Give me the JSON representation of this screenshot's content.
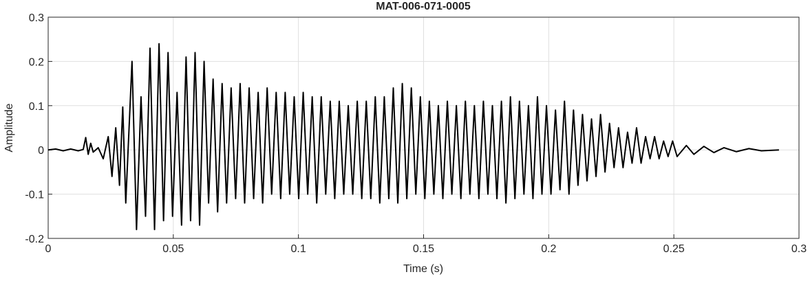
{
  "chart_data": {
    "type": "line",
    "title": "MAT-006-071-0005",
    "x_label": "Time (s)",
    "y_label": "Amplitude",
    "xlim": [
      0,
      0.3
    ],
    "ylim": [
      -0.2,
      0.3
    ],
    "xticks": [
      0,
      0.05,
      0.1,
      0.15,
      0.2,
      0.25,
      0.3
    ],
    "yticks": [
      -0.2,
      -0.1,
      0,
      0.1,
      0.2,
      0.3
    ],
    "grid": true,
    "series": [
      {
        "color": "#000000",
        "x": [
          0,
          0.003,
          0.006,
          0.009,
          0.012,
          0.014,
          0.015,
          0.016,
          0.017,
          0.018,
          0.02,
          0.022,
          0.024,
          0.0255,
          0.027,
          0.0285,
          0.0298,
          0.031,
          0.0335,
          0.0353,
          0.0371,
          0.0389,
          0.0407,
          0.0425,
          0.0443,
          0.0461,
          0.0479,
          0.0497,
          0.0515,
          0.0533,
          0.0551,
          0.0569,
          0.0587,
          0.0605,
          0.0623,
          0.0641,
          0.0659,
          0.0677,
          0.0695,
          0.0713,
          0.0731,
          0.0749,
          0.0767,
          0.0785,
          0.0803,
          0.0821,
          0.0839,
          0.0857,
          0.0875,
          0.0893,
          0.0911,
          0.0929,
          0.0947,
          0.0965,
          0.0983,
          0.1001,
          0.1019,
          0.1037,
          0.1055,
          0.1073,
          0.1091,
          0.1109,
          0.1127,
          0.1145,
          0.1163,
          0.1181,
          0.1199,
          0.1217,
          0.1235,
          0.1253,
          0.1271,
          0.1289,
          0.1307,
          0.1325,
          0.1343,
          0.1361,
          0.1379,
          0.1397,
          0.1415,
          0.1433,
          0.1451,
          0.1469,
          0.1487,
          0.1505,
          0.1523,
          0.1541,
          0.1559,
          0.1577,
          0.1595,
          0.1613,
          0.1631,
          0.1649,
          0.1667,
          0.1685,
          0.1703,
          0.1721,
          0.1739,
          0.1757,
          0.1775,
          0.1793,
          0.1811,
          0.1829,
          0.1847,
          0.1865,
          0.1883,
          0.1901,
          0.1919,
          0.1937,
          0.1955,
          0.1973,
          0.1991,
          0.2009,
          0.2027,
          0.2045,
          0.2063,
          0.2081,
          0.2099,
          0.2117,
          0.2135,
          0.2153,
          0.2171,
          0.2189,
          0.2207,
          0.2225,
          0.2243,
          0.2261,
          0.2279,
          0.2297,
          0.2315,
          0.2333,
          0.2351,
          0.2369,
          0.2387,
          0.2405,
          0.2423,
          0.2441,
          0.2459,
          0.2477,
          0.2495,
          0.2513,
          0.255,
          0.258,
          0.262,
          0.266,
          0.27,
          0.275,
          0.28,
          0.285,
          0.292
        ],
        "values": [
          0,
          0.002,
          -0.002,
          0.002,
          -0.002,
          0.001,
          0.028,
          -0.01,
          0.015,
          -0.005,
          0.005,
          -0.02,
          0.03,
          -0.06,
          0.05,
          -0.08,
          0.097,
          -0.12,
          0.2,
          -0.18,
          0.12,
          -0.15,
          0.23,
          -0.18,
          0.24,
          -0.16,
          0.22,
          -0.15,
          0.13,
          -0.17,
          0.21,
          -0.16,
          0.22,
          -0.17,
          0.2,
          -0.12,
          0.16,
          -0.14,
          0.15,
          -0.12,
          0.14,
          -0.11,
          0.15,
          -0.12,
          0.14,
          -0.11,
          0.13,
          -0.12,
          0.14,
          -0.1,
          0.13,
          -0.11,
          0.13,
          -0.1,
          0.12,
          -0.11,
          0.13,
          -0.1,
          0.12,
          -0.12,
          0.12,
          -0.1,
          0.11,
          -0.11,
          0.11,
          -0.1,
          0.1,
          -0.1,
          0.11,
          -0.11,
          0.11,
          -0.11,
          0.12,
          -0.12,
          0.12,
          -0.11,
          0.14,
          -0.12,
          0.15,
          -0.11,
          0.14,
          -0.1,
          0.12,
          -0.11,
          0.11,
          -0.1,
          0.1,
          -0.11,
          0.11,
          -0.1,
          0.1,
          -0.11,
          0.11,
          -0.1,
          0.1,
          -0.11,
          0.11,
          -0.1,
          0.1,
          -0.11,
          0.11,
          -0.12,
          0.12,
          -0.11,
          0.11,
          -0.1,
          0.1,
          -0.11,
          0.12,
          -0.1,
          0.1,
          -0.1,
          0.09,
          -0.09,
          0.11,
          -0.1,
          0.09,
          -0.08,
          0.08,
          -0.07,
          0.07,
          -0.06,
          0.08,
          -0.05,
          0.06,
          -0.04,
          0.05,
          -0.04,
          0.04,
          -0.03,
          0.05,
          -0.03,
          0.03,
          -0.02,
          0.03,
          -0.02,
          0.02,
          -0.015,
          0.02,
          -0.015,
          0.01,
          -0.01,
          0.008,
          -0.006,
          0.005,
          -0.004,
          0.003,
          -0.002,
          0
        ]
      }
    ]
  }
}
